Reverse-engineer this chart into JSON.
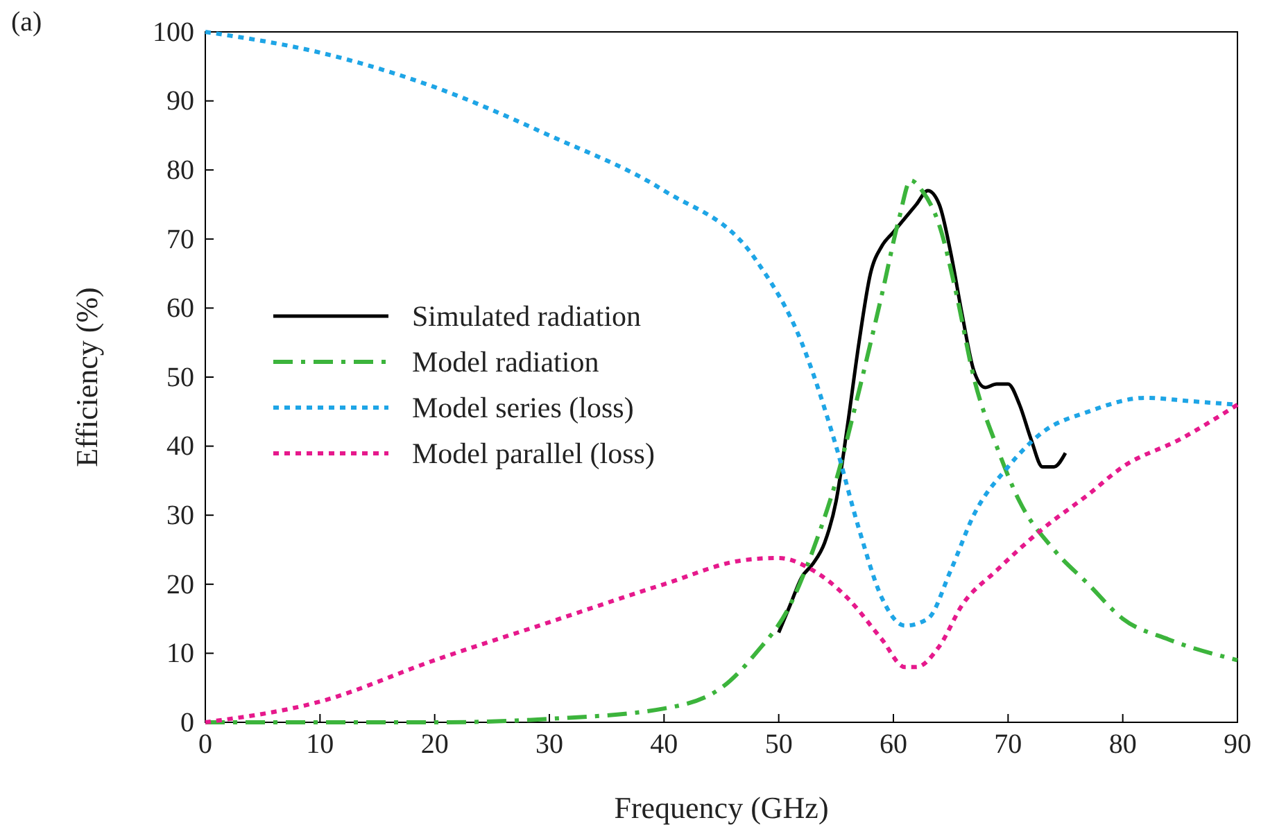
{
  "chart_data": {
    "type": "line",
    "xlabel": "Frequency (GHz)",
    "ylabel": "Efficiency (%)",
    "annotations": [
      "(a)"
    ],
    "xlim": [
      0,
      90
    ],
    "ylim": [
      0,
      100
    ],
    "xticks": [
      0,
      10,
      20,
      30,
      40,
      50,
      60,
      70,
      80,
      90
    ],
    "yticks": [
      0,
      10,
      20,
      30,
      40,
      50,
      60,
      70,
      80,
      90,
      100
    ],
    "grid": false,
    "legend": "left",
    "series": [
      {
        "name": "Simulated radiation",
        "color": "#000000",
        "line_style": "solid",
        "x": [
          50,
          51,
          52,
          53,
          54,
          55,
          56,
          57,
          58,
          59,
          60,
          61,
          62,
          63,
          64,
          65,
          66,
          67,
          68,
          69,
          70,
          71,
          72,
          73,
          74,
          75
        ],
        "values": [
          13,
          17,
          21,
          23,
          26,
          32,
          43,
          55,
          65,
          69,
          71,
          73,
          75,
          77,
          75,
          68,
          59,
          51,
          48.5,
          49,
          49,
          46,
          41,
          37,
          37,
          39
        ]
      },
      {
        "name": "Model radiation",
        "color": "#3cb43c",
        "line_style": "dashed",
        "x": [
          0,
          10,
          20,
          30,
          40,
          45,
          48,
          51,
          53,
          55,
          57,
          59,
          60.5,
          61.5,
          62.5,
          64,
          65.5,
          67,
          69,
          71,
          74,
          77,
          80,
          84,
          90
        ],
        "values": [
          0,
          0,
          0,
          0.5,
          2,
          5,
          10,
          17,
          25,
          35,
          48,
          62,
          73,
          78.5,
          77,
          72,
          62,
          50,
          40,
          32,
          25,
          20,
          15,
          12,
          9
        ]
      },
      {
        "name": "Model series (loss)",
        "color": "#1ea5e6",
        "line_style": "dotted",
        "x": [
          0,
          10,
          20,
          30,
          40,
          48,
          52,
          55,
          57,
          59,
          61,
          63,
          65,
          67,
          70,
          73,
          77,
          82,
          86,
          90
        ],
        "values": [
          100,
          97,
          92,
          85,
          77,
          67,
          55,
          40,
          28,
          18,
          14,
          15,
          22,
          30,
          37,
          42,
          45,
          47,
          46.5,
          46
        ]
      },
      {
        "name": "Model parallel (loss)",
        "color": "#e6198c",
        "line_style": "dotted",
        "x": [
          0,
          10,
          20,
          30,
          40,
          47,
          50,
          53,
          56,
          59,
          61,
          62,
          64,
          66,
          69,
          73,
          77,
          80,
          85,
          90
        ],
        "values": [
          0,
          3,
          9,
          14.5,
          20,
          23.5,
          23.8,
          22,
          18,
          12,
          8,
          8,
          11,
          17,
          22,
          28,
          33,
          37,
          41,
          46
        ]
      }
    ]
  }
}
